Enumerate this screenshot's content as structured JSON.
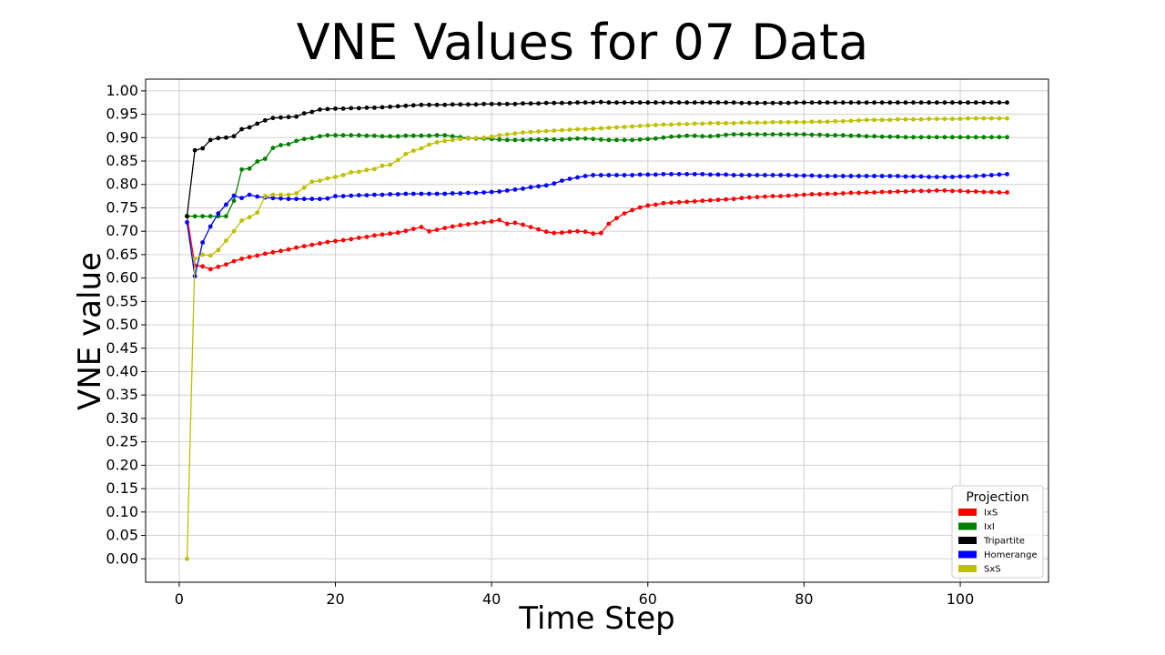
{
  "chart_data": {
    "type": "line",
    "title": "VNE Values for 07 Data",
    "xlabel": "Time Step",
    "ylabel": "VNE value",
    "xlim": [
      -4.3,
      111.3
    ],
    "ylim": [
      -0.05,
      1.025
    ],
    "xticks": [
      0,
      20,
      40,
      60,
      80,
      100
    ],
    "yticks": [
      0.0,
      0.05,
      0.1,
      0.15,
      0.2,
      0.25,
      0.3,
      0.35,
      0.4,
      0.45,
      0.5,
      0.55,
      0.6,
      0.65,
      0.7,
      0.75,
      0.8,
      0.85,
      0.9,
      0.95,
      1.0
    ],
    "grid": true,
    "legend": {
      "title": "Projection",
      "placement": "bottom-right"
    },
    "x_start": 1,
    "series": [
      {
        "name": "IxS",
        "color": "#ff0000",
        "values": [
          0.732,
          0.627,
          0.625,
          0.619,
          0.624,
          0.629,
          0.636,
          0.641,
          0.645,
          0.648,
          0.652,
          0.655,
          0.658,
          0.661,
          0.665,
          0.668,
          0.671,
          0.674,
          0.677,
          0.679,
          0.681,
          0.683,
          0.686,
          0.688,
          0.691,
          0.693,
          0.695,
          0.697,
          0.701,
          0.705,
          0.709,
          0.7,
          0.703,
          0.707,
          0.71,
          0.713,
          0.715,
          0.717,
          0.719,
          0.721,
          0.724,
          0.716,
          0.718,
          0.714,
          0.709,
          0.704,
          0.699,
          0.696,
          0.697,
          0.699,
          0.7,
          0.699,
          0.695,
          0.696,
          0.716,
          0.728,
          0.738,
          0.745,
          0.751,
          0.755,
          0.757,
          0.76,
          0.761,
          0.762,
          0.763,
          0.764,
          0.765,
          0.766,
          0.767,
          0.768,
          0.769,
          0.771,
          0.772,
          0.773,
          0.774,
          0.775,
          0.775,
          0.776,
          0.777,
          0.778,
          0.779,
          0.779,
          0.78,
          0.78,
          0.781,
          0.782,
          0.782,
          0.783,
          0.783,
          0.784,
          0.784,
          0.785,
          0.785,
          0.786,
          0.786,
          0.786,
          0.787,
          0.787,
          0.786,
          0.786,
          0.785,
          0.785,
          0.784,
          0.784,
          0.783,
          0.783
        ]
      },
      {
        "name": "IxI",
        "color": "#008000",
        "values": [
          0.732,
          0.732,
          0.732,
          0.732,
          0.732,
          0.732,
          0.765,
          0.832,
          0.834,
          0.849,
          0.855,
          0.878,
          0.884,
          0.886,
          0.893,
          0.897,
          0.899,
          0.903,
          0.905,
          0.905,
          0.905,
          0.905,
          0.905,
          0.904,
          0.904,
          0.903,
          0.903,
          0.903,
          0.904,
          0.904,
          0.904,
          0.904,
          0.905,
          0.905,
          0.903,
          0.901,
          0.899,
          0.898,
          0.898,
          0.897,
          0.896,
          0.895,
          0.895,
          0.895,
          0.896,
          0.896,
          0.896,
          0.896,
          0.896,
          0.897,
          0.898,
          0.898,
          0.897,
          0.896,
          0.895,
          0.895,
          0.895,
          0.895,
          0.896,
          0.897,
          0.898,
          0.9,
          0.902,
          0.903,
          0.904,
          0.904,
          0.903,
          0.903,
          0.904,
          0.906,
          0.907,
          0.907,
          0.907,
          0.907,
          0.907,
          0.907,
          0.907,
          0.907,
          0.907,
          0.907,
          0.906,
          0.906,
          0.905,
          0.905,
          0.905,
          0.904,
          0.904,
          0.903,
          0.903,
          0.902,
          0.902,
          0.902,
          0.901,
          0.901,
          0.901,
          0.901,
          0.901,
          0.901,
          0.901,
          0.901,
          0.901,
          0.901,
          0.901,
          0.901,
          0.901,
          0.901
        ]
      },
      {
        "name": "Tripartite",
        "color": "#000000",
        "values": [
          0.732,
          0.873,
          0.877,
          0.895,
          0.899,
          0.9,
          0.903,
          0.918,
          0.922,
          0.93,
          0.937,
          0.942,
          0.943,
          0.944,
          0.945,
          0.952,
          0.955,
          0.96,
          0.961,
          0.962,
          0.962,
          0.963,
          0.963,
          0.964,
          0.964,
          0.965,
          0.966,
          0.967,
          0.968,
          0.969,
          0.97,
          0.97,
          0.97,
          0.97,
          0.971,
          0.971,
          0.971,
          0.971,
          0.972,
          0.972,
          0.972,
          0.972,
          0.972,
          0.973,
          0.973,
          0.973,
          0.974,
          0.974,
          0.974,
          0.974,
          0.975,
          0.975,
          0.975,
          0.976,
          0.975,
          0.975,
          0.975,
          0.975,
          0.975,
          0.975,
          0.975,
          0.975,
          0.975,
          0.975,
          0.975,
          0.975,
          0.975,
          0.975,
          0.975,
          0.975,
          0.975,
          0.974,
          0.974,
          0.974,
          0.974,
          0.974,
          0.974,
          0.974,
          0.975,
          0.975,
          0.975,
          0.975,
          0.975,
          0.975,
          0.975,
          0.975,
          0.975,
          0.975,
          0.975,
          0.975,
          0.975,
          0.975,
          0.975,
          0.975,
          0.975,
          0.975,
          0.975,
          0.975,
          0.975,
          0.975,
          0.975,
          0.975,
          0.975,
          0.975,
          0.975,
          0.975
        ]
      },
      {
        "name": "Homerange",
        "color": "#0000ff",
        "values": [
          0.719,
          0.604,
          0.676,
          0.71,
          0.738,
          0.757,
          0.776,
          0.771,
          0.778,
          0.774,
          0.772,
          0.771,
          0.77,
          0.769,
          0.769,
          0.769,
          0.769,
          0.769,
          0.77,
          0.775,
          0.775,
          0.776,
          0.777,
          0.777,
          0.778,
          0.778,
          0.779,
          0.779,
          0.78,
          0.78,
          0.78,
          0.78,
          0.78,
          0.78,
          0.781,
          0.781,
          0.782,
          0.782,
          0.783,
          0.784,
          0.785,
          0.787,
          0.789,
          0.791,
          0.794,
          0.796,
          0.798,
          0.802,
          0.808,
          0.812,
          0.815,
          0.818,
          0.82,
          0.82,
          0.82,
          0.82,
          0.82,
          0.82,
          0.821,
          0.821,
          0.821,
          0.822,
          0.822,
          0.822,
          0.822,
          0.822,
          0.822,
          0.821,
          0.821,
          0.821,
          0.82,
          0.82,
          0.82,
          0.82,
          0.82,
          0.82,
          0.82,
          0.82,
          0.819,
          0.819,
          0.819,
          0.818,
          0.818,
          0.818,
          0.818,
          0.818,
          0.818,
          0.818,
          0.818,
          0.818,
          0.818,
          0.818,
          0.817,
          0.817,
          0.817,
          0.816,
          0.816,
          0.816,
          0.816,
          0.817,
          0.817,
          0.818,
          0.819,
          0.82,
          0.821,
          0.822
        ]
      },
      {
        "name": "SxS",
        "color": "#bfbf00",
        "values": [
          0.0,
          0.641,
          0.65,
          0.648,
          0.66,
          0.68,
          0.7,
          0.723,
          0.73,
          0.74,
          0.775,
          0.778,
          0.778,
          0.778,
          0.781,
          0.793,
          0.806,
          0.808,
          0.813,
          0.816,
          0.82,
          0.826,
          0.827,
          0.831,
          0.833,
          0.84,
          0.842,
          0.852,
          0.865,
          0.872,
          0.877,
          0.885,
          0.89,
          0.893,
          0.895,
          0.897,
          0.898,
          0.899,
          0.9,
          0.902,
          0.905,
          0.907,
          0.909,
          0.911,
          0.912,
          0.913,
          0.914,
          0.915,
          0.916,
          0.917,
          0.918,
          0.918,
          0.919,
          0.92,
          0.921,
          0.922,
          0.923,
          0.924,
          0.925,
          0.926,
          0.927,
          0.928,
          0.928,
          0.929,
          0.929,
          0.93,
          0.93,
          0.931,
          0.931,
          0.931,
          0.931,
          0.932,
          0.932,
          0.932,
          0.932,
          0.933,
          0.933,
          0.933,
          0.933,
          0.933,
          0.934,
          0.934,
          0.934,
          0.935,
          0.935,
          0.936,
          0.937,
          0.938,
          0.938,
          0.938,
          0.938,
          0.939,
          0.939,
          0.939,
          0.939,
          0.94,
          0.94,
          0.94,
          0.94,
          0.94,
          0.941,
          0.941,
          0.941,
          0.941,
          0.941,
          0.941
        ]
      }
    ]
  }
}
